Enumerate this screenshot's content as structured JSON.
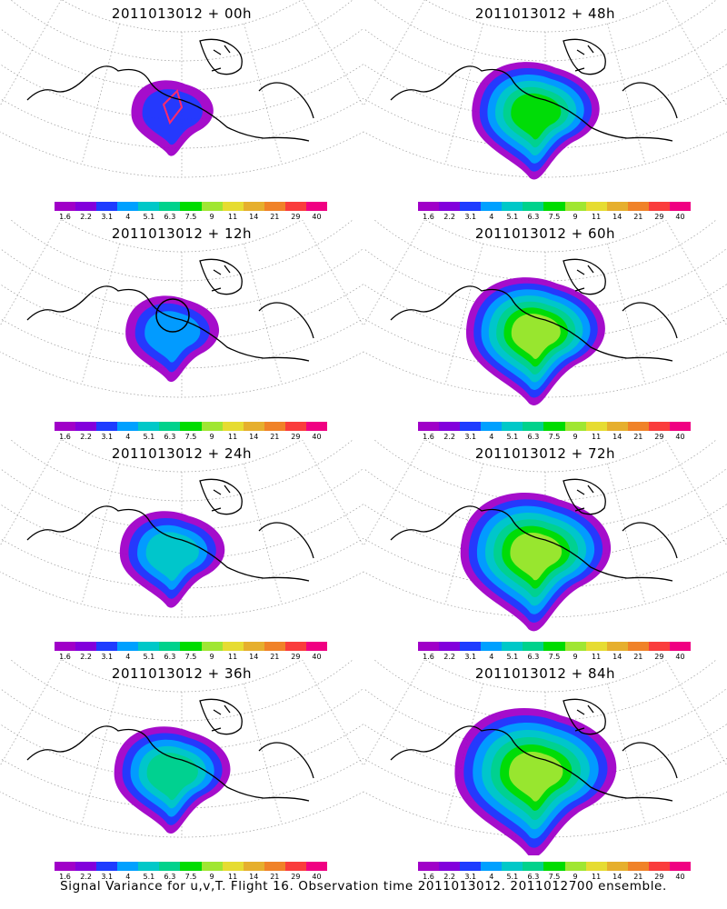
{
  "panels": [
    {
      "title": "2011013012 + 00h",
      "spread": 0
    },
    {
      "title": "2011013012 + 48h",
      "spread": 4
    },
    {
      "title": "2011013012 + 12h",
      "spread": 1
    },
    {
      "title": "2011013012 + 60h",
      "spread": 5
    },
    {
      "title": "2011013012 + 24h",
      "spread": 2
    },
    {
      "title": "2011013012 + 72h",
      "spread": 6
    },
    {
      "title": "2011013012 + 36h",
      "spread": 3
    },
    {
      "title": "2011013012 + 84h",
      "spread": 7
    }
  ],
  "colorbar": {
    "labels": [
      "1.6",
      "2.2",
      "3.1",
      "4",
      "5.1",
      "6.3",
      "7.5",
      "9",
      "11",
      "14",
      "21",
      "29",
      "40"
    ],
    "colors": [
      "#a000c8",
      "#8200dc",
      "#1e3cff",
      "#00a0ff",
      "#00c8c8",
      "#00d28c",
      "#00dc00",
      "#a0e632",
      "#e6dc32",
      "#e6af2d",
      "#f08228",
      "#fa3c3c",
      "#f00082"
    ]
  },
  "footer": "Signal Variance for u,v,T. Flight 16. Observation time 2011013012. 2011012700 ensemble."
}
